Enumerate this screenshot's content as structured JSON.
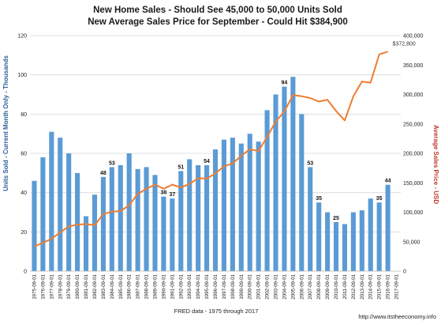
{
  "chart_data": {
    "type": "bar+line",
    "title_line1": "New Home Sales - Should  See 45,000 to 50,000 Units Sold",
    "title_line2": "New Average Sales Price for September - Could Hit $384,900",
    "ylabel_left": "Units Sold - Current Month Only - Thousands",
    "ylabel_right": "Average Sales Price - USD",
    "xlabel": "FRED data - 1975 through 2017",
    "left_ylim": [
      0,
      120
    ],
    "left_ticks": [
      "0",
      "20",
      "40",
      "60",
      "80",
      "100",
      "120"
    ],
    "right_ylim": [
      0,
      400000
    ],
    "right_ticks": [
      "0",
      "50,000",
      "100,000",
      "150,000",
      "200,000",
      "250,000",
      "300,000",
      "350,000",
      "400,000"
    ],
    "grid": true,
    "categories": [
      "1975-09-01",
      "1976-09-01",
      "1977-09-01",
      "1978-09-01",
      "1979-09-01",
      "1980-09-01",
      "1981-09-01",
      "1982-09-01",
      "1983-09-01",
      "1984-09-01",
      "1985-09-01",
      "1986-09-01",
      "1987-09-01",
      "1988-09-01",
      "1989-09-01",
      "1990-09-01",
      "1991-09-01",
      "1992-09-01",
      "1993-09-01",
      "1994-09-01",
      "1995-09-01",
      "1996-09-01",
      "1997-09-01",
      "1998-09-01",
      "1999-09-01",
      "2000-09-01",
      "2001-09-01",
      "2002-09-01",
      "2003-09-01",
      "2004-09-01",
      "2005-09-01",
      "2006-09-01",
      "2007-09-01",
      "2008-09-01",
      "2009-09-01",
      "2010-09-01",
      "2011-09-01",
      "2012-09-01",
      "2013-09-01",
      "2014-09-01",
      "2015-09-01",
      "2016-09-01",
      "2017-09-01"
    ],
    "series": [
      {
        "name": "",
        "type": "bar",
        "axis": "left",
        "color": "#5b9bd5",
        "values": [
          46,
          58,
          71,
          68,
          60,
          50,
          28,
          39,
          48,
          53,
          54,
          60,
          52,
          53,
          49,
          38,
          37,
          51,
          57,
          54,
          54,
          62,
          67,
          68,
          65,
          70,
          66,
          82,
          90,
          94,
          99,
          80,
          53,
          35,
          30,
          25,
          24,
          30,
          31,
          37,
          35,
          44,
          null
        ],
        "labels": {
          "8": "48",
          "9": "53",
          "15": "38",
          "16": "37",
          "17": "51",
          "20": "54",
          "29": "94",
          "32": "53",
          "33": "35",
          "35": "25",
          "40": "35",
          "41": "44"
        }
      },
      {
        "name": "",
        "type": "line",
        "axis": "right",
        "color": "#ed7d31",
        "values": [
          42000,
          48000,
          55000,
          66000,
          76000,
          79000,
          80000,
          78000,
          97000,
          101000,
          102000,
          112000,
          131000,
          140000,
          147000,
          140000,
          147000,
          142000,
          148000,
          158000,
          157000,
          166000,
          178000,
          183000,
          196000,
          207000,
          204000,
          228000,
          254000,
          271000,
          299000,
          297000,
          294000,
          288000,
          291000,
          272000,
          256000,
          297000,
          322000,
          320000,
          368000,
          372800,
          null
        ],
        "labels": {
          "41": "$372,800"
        }
      }
    ]
  },
  "footer_right": "http://www.itstheeconomy.info"
}
